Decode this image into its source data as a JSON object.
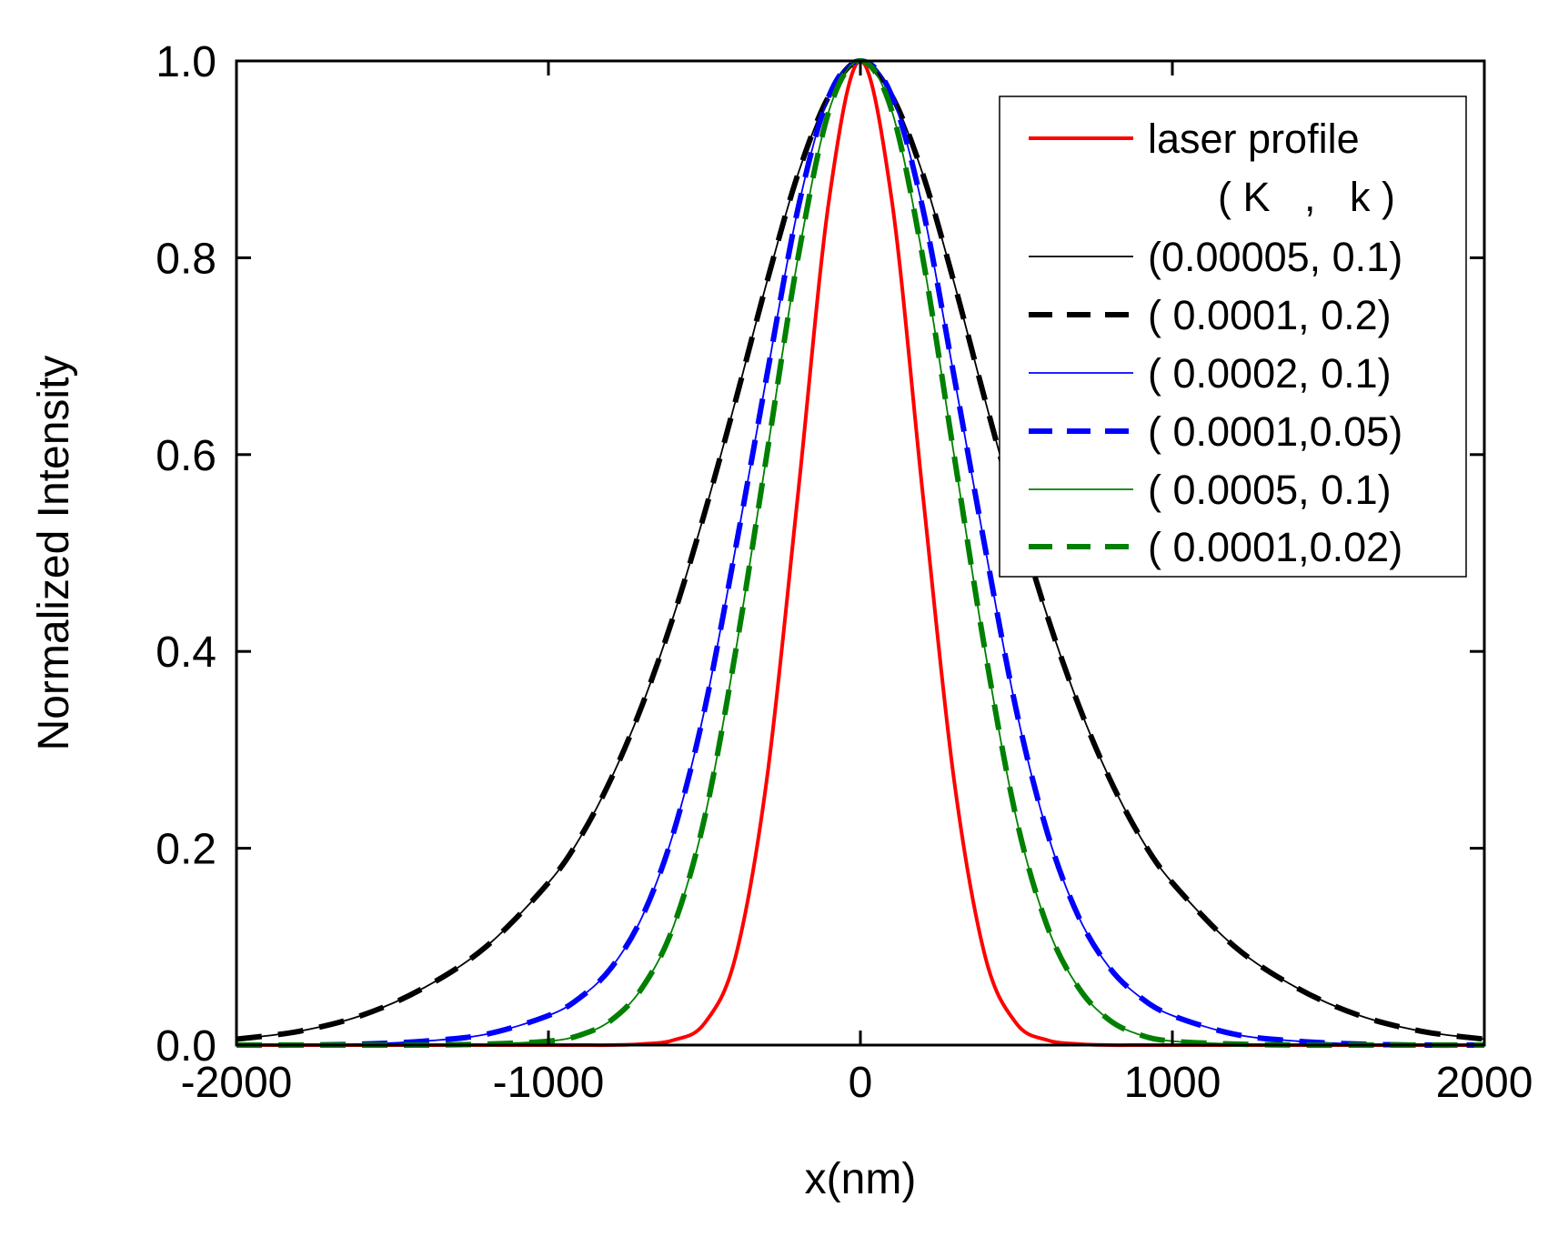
{
  "chart_data": {
    "type": "line",
    "title": "",
    "xlabel": "x(nm)",
    "ylabel": "Normalized Intensity",
    "xlim": [
      -2000,
      2000
    ],
    "ylim": [
      0.0,
      1.0
    ],
    "x_ticks": [
      -2000,
      -1000,
      0,
      1000,
      2000
    ],
    "x_tick_labels": [
      "-2000",
      "-1000",
      "0",
      "1000",
      "2000"
    ],
    "y_ticks": [
      0.0,
      0.2,
      0.4,
      0.6,
      0.8,
      1.0
    ],
    "y_tick_labels": [
      "0.0",
      "0.2",
      "0.4",
      "0.6",
      "0.8",
      "1.0"
    ],
    "grid": false,
    "legend_position": "top-right",
    "legend_header": "( K   ,   k )",
    "x": [
      -2000,
      -1800,
      -1600,
      -1400,
      -1200,
      -1000,
      -900,
      -800,
      -700,
      -600,
      -500,
      -400,
      -300,
      -200,
      -100,
      0,
      100,
      200,
      300,
      400,
      500,
      600,
      700,
      800,
      900,
      1000,
      1200,
      1400,
      1600,
      1800,
      2000
    ],
    "series": [
      {
        "name": "laser profile",
        "color": "#ff0000",
        "style": "solid",
        "width": "thick",
        "values": [
          0,
          0,
          0,
          0,
          0,
          0,
          0,
          0,
          0.001,
          0.005,
          0.022,
          0.09,
          0.27,
          0.56,
          0.86,
          1.0,
          0.86,
          0.56,
          0.27,
          0.09,
          0.022,
          0.005,
          0.001,
          0,
          0,
          0,
          0,
          0,
          0,
          0,
          0
        ]
      },
      {
        "name": "(0.00005, 0.1)",
        "color": "#000000",
        "style": "solid",
        "width": "thin",
        "values": [
          0.006,
          0.014,
          0.03,
          0.058,
          0.1,
          0.165,
          0.21,
          0.27,
          0.345,
          0.435,
          0.54,
          0.655,
          0.775,
          0.885,
          0.965,
          1.0,
          0.965,
          0.885,
          0.775,
          0.655,
          0.54,
          0.435,
          0.345,
          0.27,
          0.21,
          0.165,
          0.1,
          0.058,
          0.03,
          0.014,
          0.006
        ]
      },
      {
        "name": "( 0.0001,  0.2)",
        "color": "#000000",
        "style": "dashed",
        "width": "thick",
        "values": [
          0.006,
          0.014,
          0.03,
          0.058,
          0.1,
          0.165,
          0.21,
          0.27,
          0.345,
          0.435,
          0.54,
          0.655,
          0.775,
          0.885,
          0.965,
          1.0,
          0.965,
          0.885,
          0.775,
          0.655,
          0.54,
          0.435,
          0.345,
          0.27,
          0.21,
          0.165,
          0.1,
          0.058,
          0.03,
          0.014,
          0.006
        ]
      },
      {
        "name": "( 0.0002,  0.1)",
        "color": "#0000ff",
        "style": "solid",
        "width": "thin",
        "values": [
          0,
          0,
          0.001,
          0.004,
          0.011,
          0.03,
          0.048,
          0.078,
          0.13,
          0.215,
          0.34,
          0.505,
          0.68,
          0.85,
          0.965,
          1.0,
          0.965,
          0.85,
          0.68,
          0.505,
          0.34,
          0.215,
          0.13,
          0.078,
          0.048,
          0.03,
          0.011,
          0.004,
          0.001,
          0,
          0
        ]
      },
      {
        "name": "( 0.0001,0.05)",
        "color": "#0000ff",
        "style": "dashed",
        "width": "thick",
        "values": [
          0,
          0,
          0.001,
          0.004,
          0.011,
          0.03,
          0.048,
          0.078,
          0.13,
          0.215,
          0.34,
          0.505,
          0.68,
          0.85,
          0.965,
          1.0,
          0.965,
          0.85,
          0.68,
          0.505,
          0.34,
          0.215,
          0.13,
          0.078,
          0.048,
          0.03,
          0.011,
          0.004,
          0.001,
          0,
          0
        ]
      },
      {
        "name": "( 0.0005,  0.1)",
        "color": "#008000",
        "style": "solid",
        "width": "thin",
        "values": [
          0,
          0,
          0,
          0,
          0.001,
          0.004,
          0.01,
          0.025,
          0.058,
          0.12,
          0.23,
          0.4,
          0.6,
          0.8,
          0.95,
          1.0,
          0.95,
          0.8,
          0.6,
          0.4,
          0.23,
          0.12,
          0.058,
          0.025,
          0.01,
          0.004,
          0.001,
          0,
          0,
          0,
          0
        ]
      },
      {
        "name": "( 0.0001,0.02)",
        "color": "#008000",
        "style": "dashed",
        "width": "thick",
        "values": [
          0,
          0,
          0,
          0,
          0.001,
          0.004,
          0.01,
          0.025,
          0.058,
          0.12,
          0.23,
          0.4,
          0.6,
          0.8,
          0.95,
          1.0,
          0.95,
          0.8,
          0.6,
          0.4,
          0.23,
          0.12,
          0.058,
          0.025,
          0.01,
          0.004,
          0.001,
          0,
          0,
          0,
          0
        ]
      }
    ]
  }
}
